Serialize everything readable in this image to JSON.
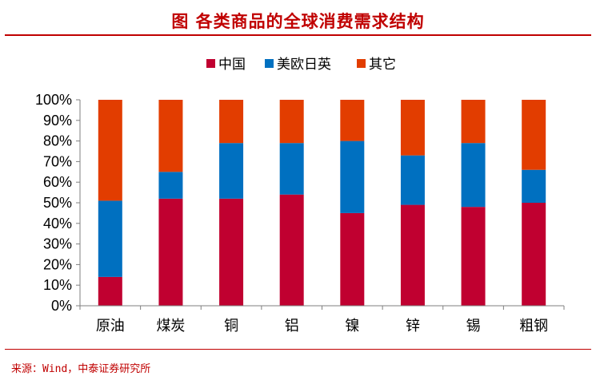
{
  "header": {
    "title": "图 各类商品的全球消费需求结构"
  },
  "footer": {
    "source": "来源：Wind，中泰证券研究所"
  },
  "chart_data": {
    "type": "bar",
    "stacked": true,
    "categories": [
      "原油",
      "煤炭",
      "铜",
      "铝",
      "镍",
      "锌",
      "锡",
      "粗钢"
    ],
    "series": [
      {
        "name": "中国",
        "color": "#c00030",
        "values": [
          14,
          52,
          52,
          54,
          45,
          49,
          48,
          50
        ]
      },
      {
        "name": "美欧日英",
        "color": "#0070c0",
        "values": [
          37,
          13,
          27,
          25,
          35,
          24,
          31,
          16
        ]
      },
      {
        "name": "其它",
        "color": "#e23d00",
        "values": [
          49,
          35,
          21,
          21,
          20,
          27,
          21,
          34
        ]
      }
    ],
    "ylim": [
      0,
      100
    ],
    "yticks": [
      "0%",
      "10%",
      "20%",
      "30%",
      "40%",
      "50%",
      "60%",
      "70%",
      "80%",
      "90%",
      "100%"
    ],
    "legend_position": "top-center",
    "grid": false
  }
}
